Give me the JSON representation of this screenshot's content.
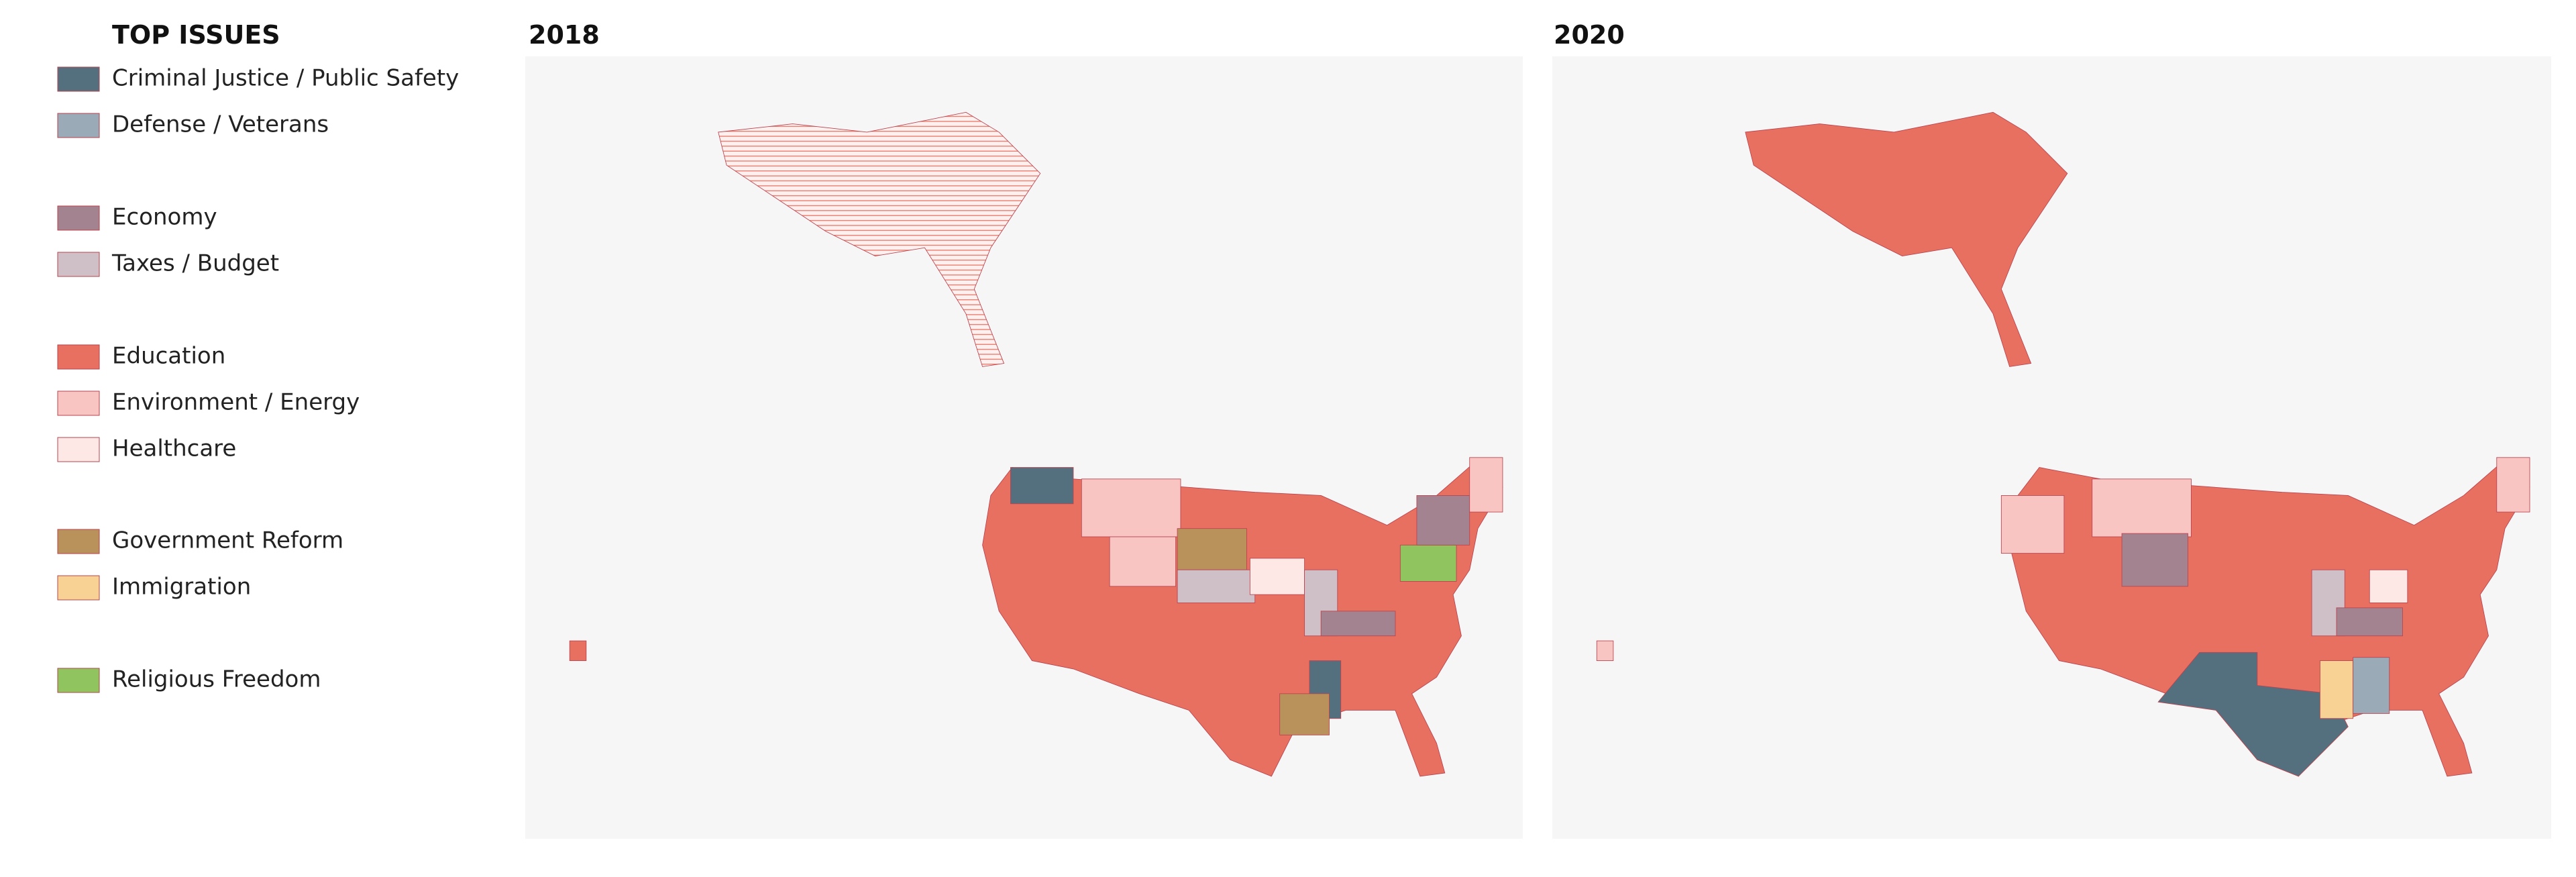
{
  "legend": {
    "title": "TOP ISSUES",
    "items": [
      {
        "label": "Criminal Justice / Public Safety",
        "color": "#54707f"
      },
      {
        "label": "Defense / Veterans",
        "color": "#9aaab7"
      },
      {
        "label": "Economy",
        "color": "#a3838f"
      },
      {
        "label": "Taxes / Budget",
        "color": "#cfbfc6"
      },
      {
        "label": "Education",
        "color": "#e87060"
      },
      {
        "label": "Environment / Energy",
        "color": "#f9c5c3"
      },
      {
        "label": "Healthcare",
        "color": "#fde8e6"
      },
      {
        "label": "Government Reform",
        "color": "#b8925a"
      },
      {
        "label": "Immigration",
        "color": "#f8d295"
      },
      {
        "label": "Religious Freedom",
        "color": "#8fc45f"
      }
    ]
  },
  "maps": [
    {
      "title": "2018"
    },
    {
      "title": "2020"
    }
  ]
}
